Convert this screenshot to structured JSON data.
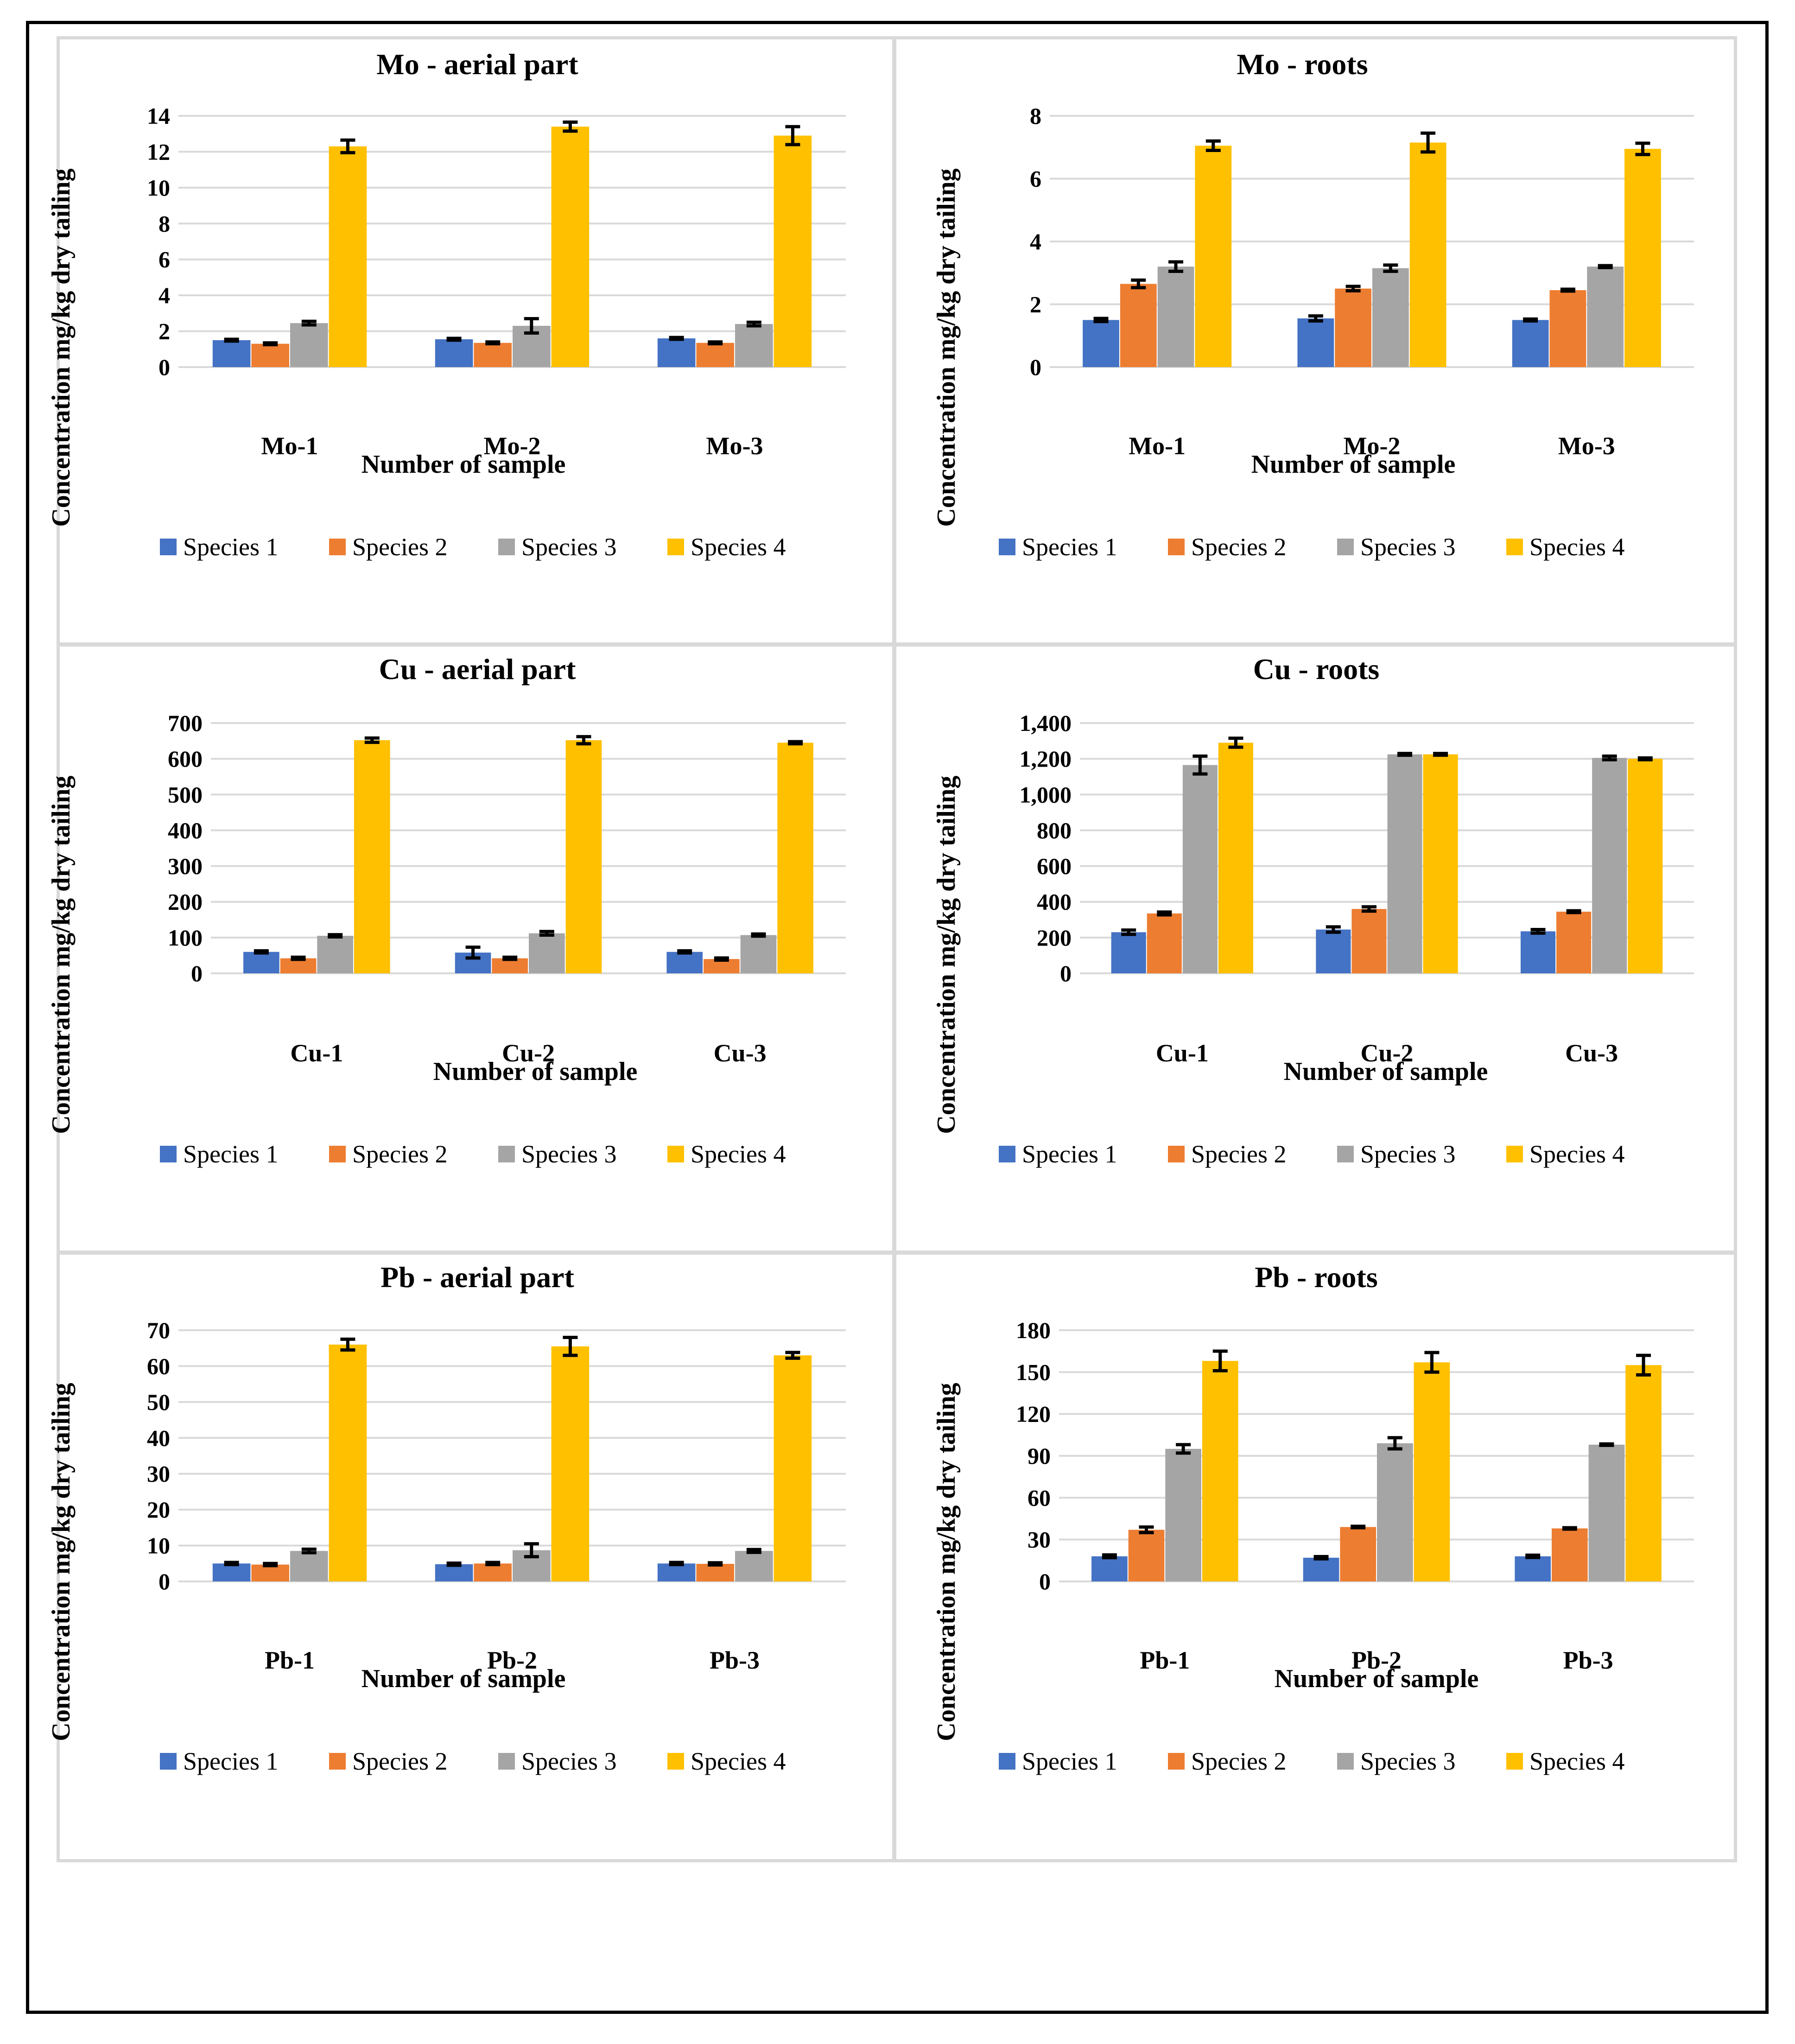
{
  "chart_data": [
    {
      "type": "bar",
      "title": "Mo - aerial part",
      "xlabel": "Number of sample",
      "ylabel": "Concentration mg/kg dry tailing",
      "categories": [
        "Mo-1",
        "Mo-2",
        "Mo-3"
      ],
      "yticks": [
        "0",
        "2",
        "4",
        "6",
        "8",
        "10",
        "12",
        "14"
      ],
      "ylim": [
        0,
        14
      ],
      "series": [
        {
          "name": "Species 1",
          "color": "#4472c4",
          "values": [
            1.5,
            1.55,
            1.6
          ],
          "errors": [
            0.05,
            0.05,
            0.05
          ]
        },
        {
          "name": "Species 2",
          "color": "#ed7d31",
          "values": [
            1.3,
            1.35,
            1.35
          ],
          "errors": [
            0.05,
            0.05,
            0.05
          ]
        },
        {
          "name": "Species 3",
          "color": "#a5a5a5",
          "values": [
            2.45,
            2.3,
            2.4
          ],
          "errors": [
            0.1,
            0.4,
            0.1
          ]
        },
        {
          "name": "Species 4",
          "color": "#ffc000",
          "values": [
            12.3,
            13.4,
            12.9
          ],
          "errors": [
            0.35,
            0.25,
            0.5
          ]
        }
      ]
    },
    {
      "type": "bar",
      "title": "Mo - roots",
      "xlabel": "Number of sample",
      "ylabel": "Concentration mg/kg dry tailing",
      "categories": [
        "Mo-1",
        "Mo-2",
        "Mo-3"
      ],
      "yticks": [
        "0",
        "2",
        "4",
        "6",
        "8"
      ],
      "ylim": [
        0,
        8
      ],
      "series": [
        {
          "name": "Species 1",
          "color": "#4472c4",
          "values": [
            1.5,
            1.55,
            1.5
          ],
          "errors": [
            0.05,
            0.08,
            0.03
          ]
        },
        {
          "name": "Species 2",
          "color": "#ed7d31",
          "values": [
            2.65,
            2.5,
            2.45
          ],
          "errors": [
            0.12,
            0.07,
            0.03
          ]
        },
        {
          "name": "Species 3",
          "color": "#a5a5a5",
          "values": [
            3.2,
            3.15,
            3.2
          ],
          "errors": [
            0.15,
            0.1,
            0.03
          ]
        },
        {
          "name": "Species 4",
          "color": "#ffc000",
          "values": [
            7.05,
            7.15,
            6.95
          ],
          "errors": [
            0.15,
            0.3,
            0.18
          ]
        }
      ]
    },
    {
      "type": "bar",
      "title": "Cu - aerial part",
      "xlabel": "Number of sample",
      "ylabel": "Concentration mg/kg dry tailing",
      "categories": [
        "Cu-1",
        "Cu-2",
        "Cu-3"
      ],
      "yticks": [
        "0",
        "100",
        "200",
        "300",
        "400",
        "500",
        "600",
        "700"
      ],
      "ylim": [
        0,
        700
      ],
      "series": [
        {
          "name": "Species 1",
          "color": "#4472c4",
          "values": [
            60,
            58,
            60
          ],
          "errors": [
            3,
            15,
            3
          ]
        },
        {
          "name": "Species 2",
          "color": "#ed7d31",
          "values": [
            42,
            42,
            40
          ],
          "errors": [
            3,
            3,
            3
          ]
        },
        {
          "name": "Species 3",
          "color": "#a5a5a5",
          "values": [
            105,
            112,
            107
          ],
          "errors": [
            3,
            5,
            3
          ]
        },
        {
          "name": "Species 4",
          "color": "#ffc000",
          "values": [
            652,
            652,
            645
          ],
          "errors": [
            6,
            10,
            3
          ]
        }
      ]
    },
    {
      "type": "bar",
      "title": "Cu - roots",
      "xlabel": "Number of sample",
      "ylabel": "Concentration mg/kg dry tailing",
      "categories": [
        "Cu-1",
        "Cu-2",
        "Cu-3"
      ],
      "yticks": [
        "0",
        "200",
        "400",
        "600",
        "800",
        "1,000",
        "1,200",
        "1,400"
      ],
      "ylim": [
        0,
        1400
      ],
      "series": [
        {
          "name": "Species 1",
          "color": "#4472c4",
          "values": [
            230,
            245,
            235
          ],
          "errors": [
            12,
            15,
            10
          ]
        },
        {
          "name": "Species 2",
          "color": "#ed7d31",
          "values": [
            335,
            360,
            345
          ],
          "errors": [
            8,
            12,
            5
          ]
        },
        {
          "name": "Species 3",
          "color": "#a5a5a5",
          "values": [
            1165,
            1225,
            1205
          ],
          "errors": [
            50,
            5,
            10
          ]
        },
        {
          "name": "Species 4",
          "color": "#ffc000",
          "values": [
            1290,
            1225,
            1200
          ],
          "errors": [
            25,
            5,
            5
          ]
        }
      ]
    },
    {
      "type": "bar",
      "title": "Pb - aerial part",
      "xlabel": "Number of sample",
      "ylabel": "Concentration mg/kg dry tailing",
      "categories": [
        "Pb-1",
        "Pb-2",
        "Pb-3"
      ],
      "yticks": [
        "0",
        "10",
        "20",
        "30",
        "40",
        "50",
        "60",
        "70"
      ],
      "ylim": [
        0,
        70
      ],
      "series": [
        {
          "name": "Species 1",
          "color": "#4472c4",
          "values": [
            5,
            4.8,
            5
          ],
          "errors": [
            0.3,
            0.3,
            0.3
          ]
        },
        {
          "name": "Species 2",
          "color": "#ed7d31",
          "values": [
            4.7,
            5,
            4.9
          ],
          "errors": [
            0.3,
            0.3,
            0.3
          ]
        },
        {
          "name": "Species 3",
          "color": "#a5a5a5",
          "values": [
            8.5,
            8.7,
            8.5
          ],
          "errors": [
            0.5,
            1.8,
            0.4
          ]
        },
        {
          "name": "Species 4",
          "color": "#ffc000",
          "values": [
            66,
            65.5,
            63
          ],
          "errors": [
            1.5,
            2.5,
            0.8
          ]
        }
      ]
    },
    {
      "type": "bar",
      "title": "Pb - roots",
      "xlabel": "Number of sample",
      "ylabel": "Concentration mg/kg dry tailing",
      "categories": [
        "Pb-1",
        "Pb-2",
        "Pb-3"
      ],
      "yticks": [
        "0",
        "30",
        "60",
        "90",
        "120",
        "150",
        "180"
      ],
      "ylim": [
        0,
        180
      ],
      "series": [
        {
          "name": "Species 1",
          "color": "#4472c4",
          "values": [
            18,
            17,
            18
          ],
          "errors": [
            1,
            0.8,
            0.8
          ]
        },
        {
          "name": "Species 2",
          "color": "#ed7d31",
          "values": [
            37,
            39,
            38
          ],
          "errors": [
            2,
            0.5,
            0.5
          ]
        },
        {
          "name": "Species 3",
          "color": "#a5a5a5",
          "values": [
            95,
            99,
            98
          ],
          "errors": [
            3,
            4,
            0.5
          ]
        },
        {
          "name": "Species 4",
          "color": "#ffc000",
          "values": [
            158,
            157,
            155
          ],
          "errors": [
            7,
            7,
            7
          ]
        }
      ]
    }
  ]
}
